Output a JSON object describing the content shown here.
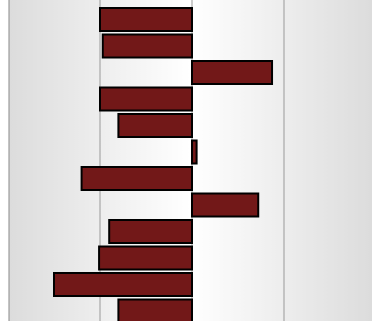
{
  "chart_data": {
    "type": "bar",
    "orientation": "horizontal",
    "categories": [
      "",
      "",
      "",
      "",
      "",
      "",
      "",
      "",
      "",
      "",
      "",
      ""
    ],
    "values": [
      -100,
      -97,
      87,
      -100,
      -80,
      5,
      -120,
      72,
      -90,
      -101,
      -150,
      -80
    ],
    "xlim": [
      -200,
      200
    ],
    "xticks": [
      -100,
      0,
      100
    ],
    "grid": true,
    "legend": "none",
    "title": "",
    "xlabel": "",
    "ylabel": ""
  },
  "colors": {
    "bar_fill": "#721818",
    "bar_stroke": "#000000",
    "grid_line": "#999999",
    "frame": "#8a8a8a",
    "background_edge": "#dcdcdc",
    "background_center": "#ffffff"
  }
}
